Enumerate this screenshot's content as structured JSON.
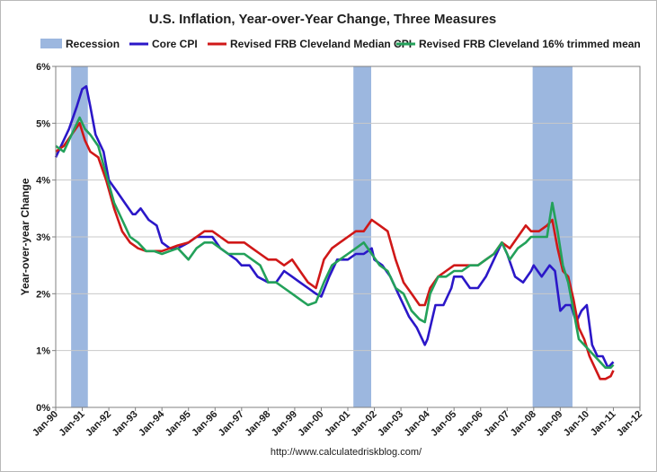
{
  "chart_data": {
    "type": "line",
    "title": "U.S. Inflation, Year-over-Year Change, Three Measures",
    "ylabel": "Year-over-year Change",
    "xlabel": "",
    "source": "http://www.calculatedriskblog.com/",
    "ylim": [
      0,
      6
    ],
    "xlim": [
      1990,
      2012
    ],
    "y_ticks": [
      0,
      1,
      2,
      3,
      4,
      5,
      6
    ],
    "y_tick_labels": [
      "0%",
      "1%",
      "2%",
      "3%",
      "4%",
      "5%",
      "6%"
    ],
    "x_ticks": [
      1990,
      1991,
      1992,
      1993,
      1994,
      1995,
      1996,
      1997,
      1998,
      1999,
      2000,
      2001,
      2002,
      2003,
      2004,
      2005,
      2006,
      2007,
      2008,
      2009,
      2010,
      2011,
      2012
    ],
    "x_tick_labels": [
      "Jan-90",
      "Jan-91",
      "Jan-92",
      "Jan-93",
      "Jan-94",
      "Jan-95",
      "Jan-96",
      "Jan-97",
      "Jan-98",
      "Jan-99",
      "Jan-00",
      "Jan-01",
      "Jan-02",
      "Jan-03",
      "Jan-04",
      "Jan-05",
      "Jan-06",
      "Jan-07",
      "Jan-08",
      "Jan-09",
      "Jan-10",
      "Jan-11",
      "Jan-12"
    ],
    "grid": true,
    "legend": "top",
    "recessions": [
      {
        "name": "Recession",
        "start": 1990.58,
        "end": 1991.21
      },
      {
        "name": "Recession",
        "start": 2001.21,
        "end": 2001.88
      },
      {
        "name": "Recession",
        "start": 2007.96,
        "end": 2009.46
      }
    ],
    "recession_label": "Recession",
    "recession_color": "#9cb7df",
    "series": [
      {
        "name": "Core CPI",
        "color": "#2b17c8",
        "points": [
          [
            1990.0,
            4.4
          ],
          [
            1990.5,
            4.9
          ],
          [
            1990.8,
            5.3
          ],
          [
            1991.0,
            5.6
          ],
          [
            1991.15,
            5.65
          ],
          [
            1991.3,
            5.3
          ],
          [
            1991.5,
            4.8
          ],
          [
            1991.8,
            4.5
          ],
          [
            1992.0,
            4.0
          ],
          [
            1992.3,
            3.8
          ],
          [
            1992.6,
            3.6
          ],
          [
            1992.9,
            3.4
          ],
          [
            1993.0,
            3.4
          ],
          [
            1993.2,
            3.5
          ],
          [
            1993.5,
            3.3
          ],
          [
            1993.8,
            3.2
          ],
          [
            1994.0,
            2.9
          ],
          [
            1994.3,
            2.8
          ],
          [
            1994.6,
            2.8
          ],
          [
            1995.0,
            2.9
          ],
          [
            1995.3,
            3.0
          ],
          [
            1995.6,
            3.0
          ],
          [
            1995.9,
            3.0
          ],
          [
            1996.2,
            2.8
          ],
          [
            1996.5,
            2.7
          ],
          [
            1996.8,
            2.6
          ],
          [
            1997.0,
            2.5
          ],
          [
            1997.3,
            2.5
          ],
          [
            1997.6,
            2.3
          ],
          [
            1998.0,
            2.2
          ],
          [
            1998.3,
            2.2
          ],
          [
            1998.6,
            2.4
          ],
          [
            1998.9,
            2.3
          ],
          [
            1999.2,
            2.2
          ],
          [
            1999.5,
            2.1
          ],
          [
            1999.8,
            2.0
          ],
          [
            2000.0,
            1.95
          ],
          [
            2000.3,
            2.3
          ],
          [
            2000.6,
            2.6
          ],
          [
            2001.0,
            2.6
          ],
          [
            2001.3,
            2.7
          ],
          [
            2001.6,
            2.7
          ],
          [
            2001.9,
            2.8
          ],
          [
            2002.0,
            2.6
          ],
          [
            2002.3,
            2.5
          ],
          [
            2002.6,
            2.3
          ],
          [
            2002.9,
            2.0
          ],
          [
            2003.0,
            1.9
          ],
          [
            2003.3,
            1.6
          ],
          [
            2003.6,
            1.4
          ],
          [
            2003.9,
            1.1
          ],
          [
            2004.0,
            1.2
          ],
          [
            2004.3,
            1.8
          ],
          [
            2004.6,
            1.8
          ],
          [
            2004.9,
            2.1
          ],
          [
            2005.0,
            2.3
          ],
          [
            2005.3,
            2.3
          ],
          [
            2005.6,
            2.1
          ],
          [
            2005.9,
            2.1
          ],
          [
            2006.2,
            2.3
          ],
          [
            2006.5,
            2.6
          ],
          [
            2006.8,
            2.9
          ],
          [
            2007.0,
            2.7
          ],
          [
            2007.3,
            2.3
          ],
          [
            2007.6,
            2.2
          ],
          [
            2007.9,
            2.4
          ],
          [
            2008.0,
            2.5
          ],
          [
            2008.3,
            2.3
          ],
          [
            2008.6,
            2.5
          ],
          [
            2008.8,
            2.4
          ],
          [
            2009.0,
            1.7
          ],
          [
            2009.2,
            1.8
          ],
          [
            2009.4,
            1.8
          ],
          [
            2009.6,
            1.5
          ],
          [
            2009.8,
            1.7
          ],
          [
            2010.0,
            1.8
          ],
          [
            2010.2,
            1.1
          ],
          [
            2010.4,
            0.9
          ],
          [
            2010.6,
            0.9
          ],
          [
            2010.8,
            0.7
          ],
          [
            2011.0,
            0.8
          ]
        ]
      },
      {
        "name": "Revised FRB Cleveland Median CPI",
        "color": "#d01818",
        "points": [
          [
            1990.0,
            4.5
          ],
          [
            1990.3,
            4.6
          ],
          [
            1990.6,
            4.8
          ],
          [
            1990.9,
            5.0
          ],
          [
            1991.1,
            4.7
          ],
          [
            1991.3,
            4.5
          ],
          [
            1991.6,
            4.4
          ],
          [
            1991.9,
            4.0
          ],
          [
            1992.2,
            3.5
          ],
          [
            1992.5,
            3.1
          ],
          [
            1992.8,
            2.9
          ],
          [
            1993.1,
            2.8
          ],
          [
            1993.4,
            2.75
          ],
          [
            1993.7,
            2.75
          ],
          [
            1994.0,
            2.75
          ],
          [
            1994.3,
            2.8
          ],
          [
            1994.6,
            2.85
          ],
          [
            1995.0,
            2.9
          ],
          [
            1995.3,
            3.0
          ],
          [
            1995.6,
            3.1
          ],
          [
            1995.9,
            3.1
          ],
          [
            1996.2,
            3.0
          ],
          [
            1996.5,
            2.9
          ],
          [
            1996.8,
            2.9
          ],
          [
            1997.1,
            2.9
          ],
          [
            1997.4,
            2.8
          ],
          [
            1997.7,
            2.7
          ],
          [
            1998.0,
            2.6
          ],
          [
            1998.3,
            2.6
          ],
          [
            1998.6,
            2.5
          ],
          [
            1998.9,
            2.6
          ],
          [
            1999.2,
            2.4
          ],
          [
            1999.5,
            2.2
          ],
          [
            1999.8,
            2.1
          ],
          [
            2000.1,
            2.6
          ],
          [
            2000.4,
            2.8
          ],
          [
            2000.7,
            2.9
          ],
          [
            2001.0,
            3.0
          ],
          [
            2001.3,
            3.1
          ],
          [
            2001.6,
            3.1
          ],
          [
            2001.9,
            3.3
          ],
          [
            2002.2,
            3.2
          ],
          [
            2002.5,
            3.1
          ],
          [
            2002.8,
            2.6
          ],
          [
            2003.1,
            2.2
          ],
          [
            2003.4,
            2.0
          ],
          [
            2003.7,
            1.8
          ],
          [
            2003.9,
            1.8
          ],
          [
            2004.1,
            2.1
          ],
          [
            2004.4,
            2.3
          ],
          [
            2004.7,
            2.4
          ],
          [
            2005.0,
            2.5
          ],
          [
            2005.3,
            2.5
          ],
          [
            2005.6,
            2.5
          ],
          [
            2005.9,
            2.5
          ],
          [
            2006.2,
            2.6
          ],
          [
            2006.5,
            2.7
          ],
          [
            2006.8,
            2.9
          ],
          [
            2007.1,
            2.8
          ],
          [
            2007.4,
            3.0
          ],
          [
            2007.7,
            3.2
          ],
          [
            2007.9,
            3.1
          ],
          [
            2008.2,
            3.1
          ],
          [
            2008.5,
            3.2
          ],
          [
            2008.7,
            3.3
          ],
          [
            2008.9,
            2.8
          ],
          [
            2009.1,
            2.4
          ],
          [
            2009.3,
            2.3
          ],
          [
            2009.5,
            1.9
          ],
          [
            2009.7,
            1.4
          ],
          [
            2009.9,
            1.2
          ],
          [
            2010.1,
            0.9
          ],
          [
            2010.3,
            0.7
          ],
          [
            2010.5,
            0.5
          ],
          [
            2010.7,
            0.5
          ],
          [
            2010.9,
            0.55
          ],
          [
            2011.0,
            0.65
          ]
        ]
      },
      {
        "name": "Revised FRB Cleveland 16% trimmed mean",
        "color": "#23a15a",
        "points": [
          [
            1990.0,
            4.6
          ],
          [
            1990.3,
            4.5
          ],
          [
            1990.6,
            4.8
          ],
          [
            1990.9,
            5.1
          ],
          [
            1991.1,
            4.9
          ],
          [
            1991.3,
            4.8
          ],
          [
            1991.6,
            4.6
          ],
          [
            1991.9,
            4.1
          ],
          [
            1992.2,
            3.6
          ],
          [
            1992.5,
            3.3
          ],
          [
            1992.8,
            3.0
          ],
          [
            1993.1,
            2.9
          ],
          [
            1993.4,
            2.75
          ],
          [
            1993.7,
            2.75
          ],
          [
            1994.0,
            2.7
          ],
          [
            1994.3,
            2.75
          ],
          [
            1994.6,
            2.8
          ],
          [
            1995.0,
            2.6
          ],
          [
            1995.3,
            2.8
          ],
          [
            1995.6,
            2.9
          ],
          [
            1995.9,
            2.9
          ],
          [
            1996.2,
            2.8
          ],
          [
            1996.5,
            2.7
          ],
          [
            1996.8,
            2.7
          ],
          [
            1997.1,
            2.7
          ],
          [
            1997.4,
            2.6
          ],
          [
            1997.7,
            2.5
          ],
          [
            1998.0,
            2.2
          ],
          [
            1998.3,
            2.2
          ],
          [
            1998.6,
            2.1
          ],
          [
            1998.9,
            2.0
          ],
          [
            1999.2,
            1.9
          ],
          [
            1999.5,
            1.8
          ],
          [
            1999.8,
            1.85
          ],
          [
            2000.1,
            2.2
          ],
          [
            2000.4,
            2.5
          ],
          [
            2000.7,
            2.6
          ],
          [
            2001.0,
            2.7
          ],
          [
            2001.3,
            2.8
          ],
          [
            2001.6,
            2.9
          ],
          [
            2001.9,
            2.7
          ],
          [
            2002.2,
            2.5
          ],
          [
            2002.5,
            2.4
          ],
          [
            2002.8,
            2.1
          ],
          [
            2003.1,
            2.0
          ],
          [
            2003.4,
            1.7
          ],
          [
            2003.7,
            1.55
          ],
          [
            2003.9,
            1.5
          ],
          [
            2004.1,
            2.0
          ],
          [
            2004.4,
            2.3
          ],
          [
            2004.7,
            2.3
          ],
          [
            2005.0,
            2.4
          ],
          [
            2005.3,
            2.4
          ],
          [
            2005.6,
            2.5
          ],
          [
            2005.9,
            2.5
          ],
          [
            2006.2,
            2.6
          ],
          [
            2006.5,
            2.7
          ],
          [
            2006.8,
            2.9
          ],
          [
            2007.1,
            2.6
          ],
          [
            2007.4,
            2.8
          ],
          [
            2007.7,
            2.9
          ],
          [
            2007.9,
            3.0
          ],
          [
            2008.2,
            3.0
          ],
          [
            2008.5,
            3.0
          ],
          [
            2008.7,
            3.6
          ],
          [
            2008.9,
            3.1
          ],
          [
            2009.1,
            2.5
          ],
          [
            2009.3,
            2.2
          ],
          [
            2009.5,
            1.7
          ],
          [
            2009.7,
            1.2
          ],
          [
            2009.9,
            1.1
          ],
          [
            2010.1,
            1.0
          ],
          [
            2010.3,
            0.9
          ],
          [
            2010.5,
            0.8
          ],
          [
            2010.7,
            0.7
          ],
          [
            2010.9,
            0.7
          ],
          [
            2011.0,
            0.75
          ]
        ]
      }
    ]
  }
}
